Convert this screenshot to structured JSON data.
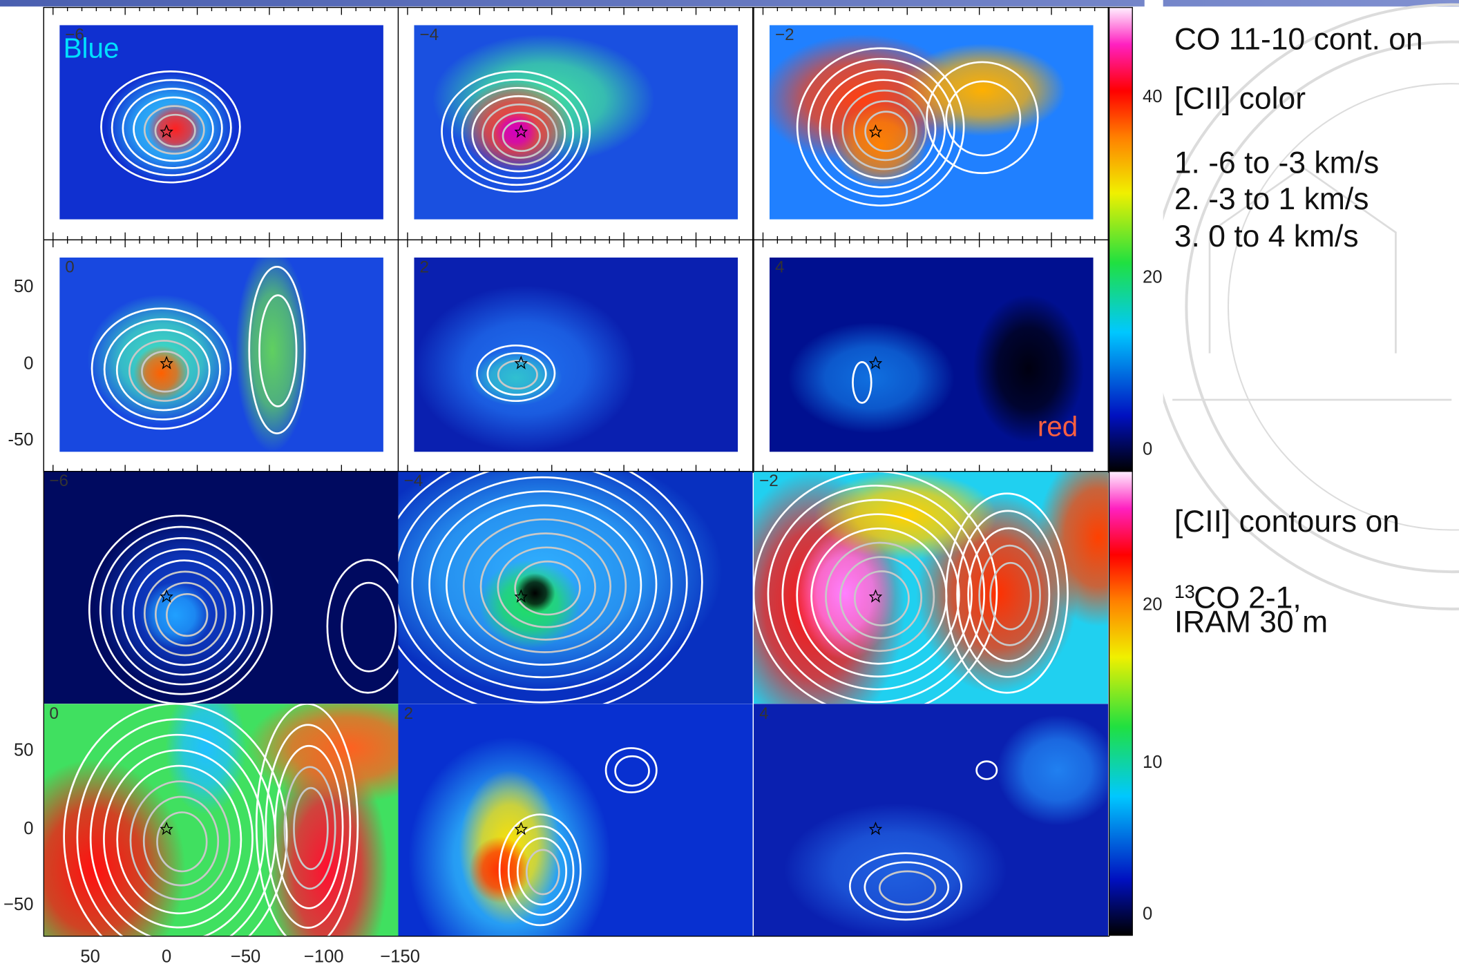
{
  "top_block": {
    "panels": [
      "−6",
      "−4",
      "−2",
      "0",
      "2",
      "4"
    ],
    "blue_label": "Blue",
    "red_label": "red",
    "y_ticks": [
      "50",
      "0",
      "-50"
    ],
    "colorbar_ticks": [
      "40",
      "20",
      "0"
    ]
  },
  "bottom_block": {
    "panels": [
      "−6",
      "−4",
      "−2",
      "0",
      "2",
      "4"
    ],
    "y_ticks": [
      "50",
      "0",
      "−50"
    ],
    "x_ticks": [
      "50",
      "0",
      "−50",
      "−100",
      "−150"
    ],
    "colorbar_ticks": [
      "20",
      "10",
      "0"
    ]
  },
  "side_text": {
    "line1": "CO 11-10 cont. on",
    "line2": "[CII] color",
    "items": [
      "1. -6 to -3 km/s",
      "2. -3 to  1 km/s",
      "3.  0 to  4 km/s"
    ],
    "line3": "[CII] contours on",
    "line4_sup": "13",
    "line4": "CO 2-1,",
    "line5": "IRAM 30 m"
  }
}
